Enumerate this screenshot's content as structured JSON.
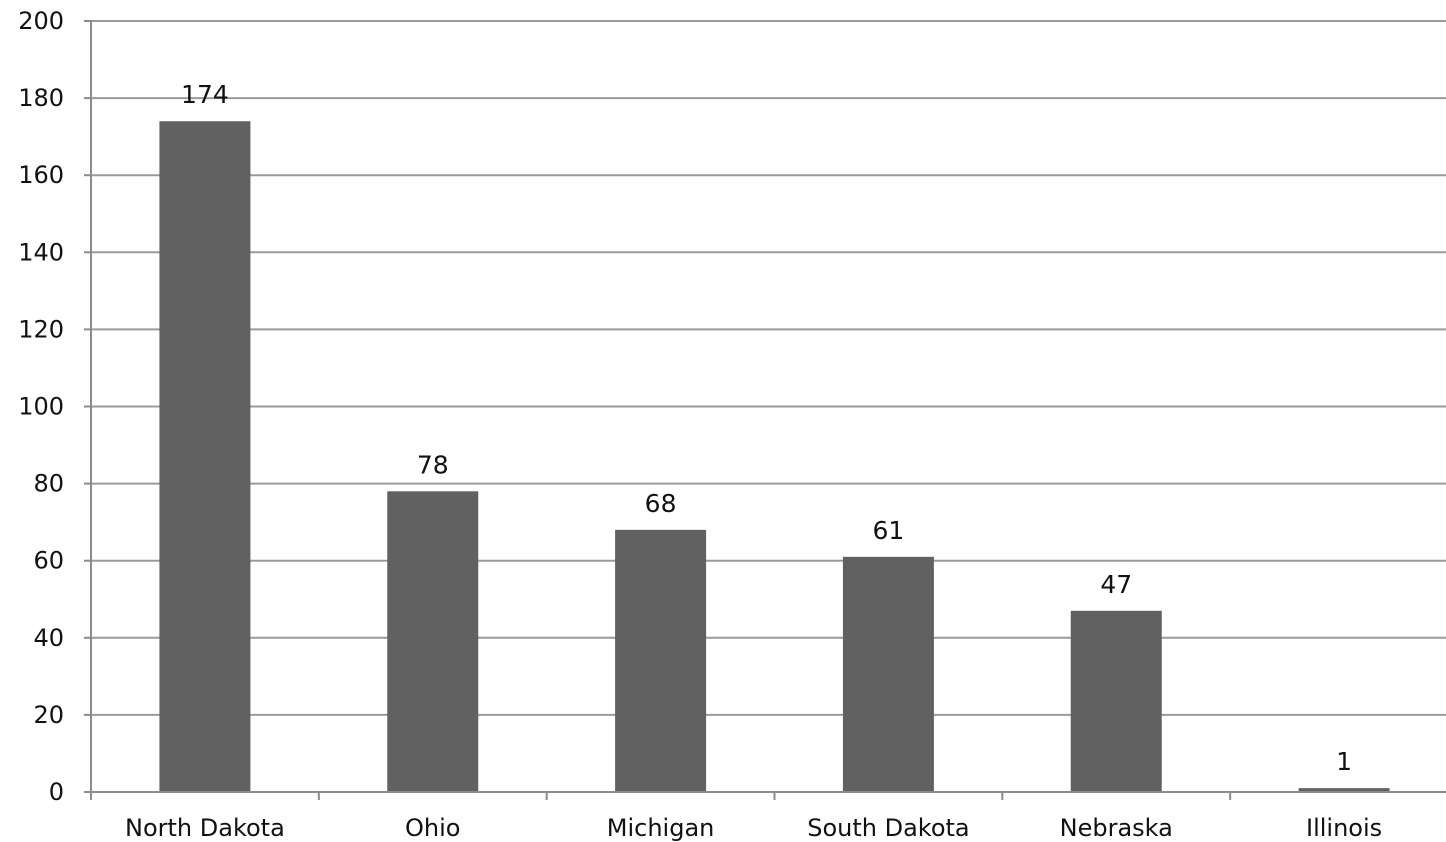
{
  "chart_data": {
    "type": "bar",
    "categories": [
      "North Dakota",
      "Ohio",
      "Michigan",
      "South Dakota",
      "Nebraska",
      "Illinois"
    ],
    "values": [
      174,
      78,
      68,
      61,
      47,
      1
    ],
    "data_labels": [
      "174",
      "78",
      "68",
      "61",
      "47",
      "1"
    ],
    "y_ticks": [
      "0",
      "20",
      "40",
      "60",
      "80",
      "100",
      "120",
      "140",
      "160",
      "180",
      "200"
    ],
    "ylim": [
      0,
      200
    ],
    "grid": true,
    "legend": "none",
    "colors": {
      "bar": "#616161",
      "grid": "#9a9a9a",
      "axis": "#8c8c8c"
    }
  }
}
